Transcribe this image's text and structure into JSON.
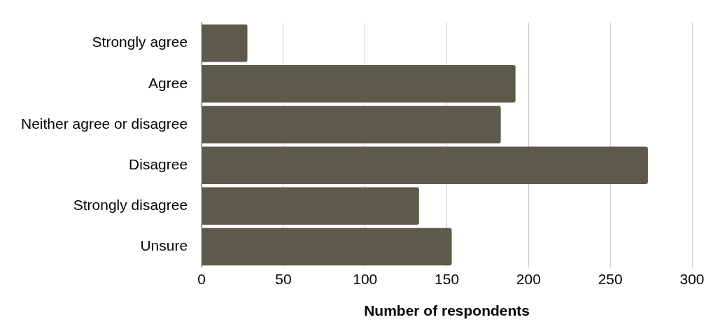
{
  "chart_data": {
    "type": "bar",
    "orientation": "horizontal",
    "xlabel": "Number of respondents",
    "categories": [
      "Strongly agree",
      "Agree",
      "Neither agree or disagree",
      "Disagree",
      "Strongly disagree",
      "Unsure"
    ],
    "values": [
      28,
      192,
      183,
      273,
      133,
      153
    ],
    "color": "#5d5a4b",
    "xlim": [
      0,
      300
    ],
    "xticks": [
      0,
      50,
      100,
      150,
      200,
      250,
      300
    ],
    "grid": "x",
    "legend": false
  }
}
